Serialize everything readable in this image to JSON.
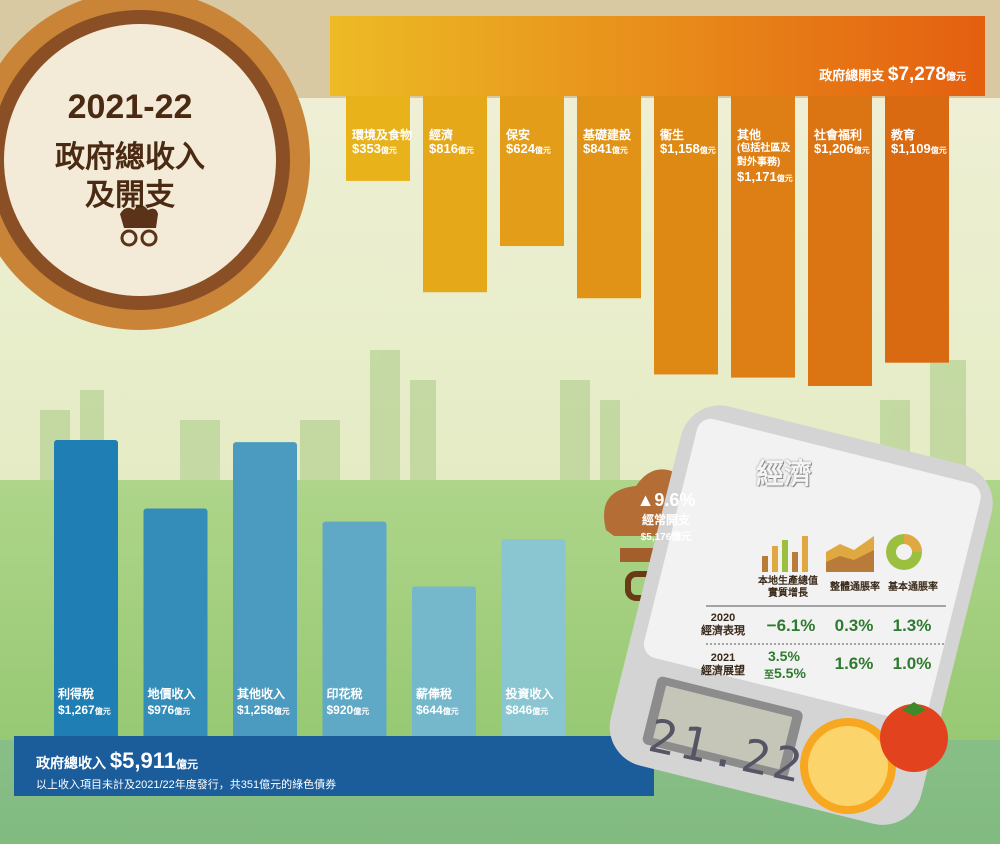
{
  "emblem": {
    "year": "2021-22",
    "title_line1": "政府總收入",
    "title_line2": "及開支"
  },
  "expenditure": {
    "total_label": "政府總開支",
    "total_value": "$7,278",
    "unit": "億元",
    "items": [
      {
        "name": "環境及食物",
        "amount": "$353",
        "note": ""
      },
      {
        "name": "經濟",
        "amount": "$816",
        "note": ""
      },
      {
        "name": "保安",
        "amount": "$624",
        "note": ""
      },
      {
        "name": "基礎建設",
        "amount": "$841",
        "note": ""
      },
      {
        "name": "衞生",
        "amount": "$1,158",
        "note": ""
      },
      {
        "name": "其他",
        "amount": "$1,171",
        "note": "(包括社區及\n對外事務)"
      },
      {
        "name": "社會福利",
        "amount": "$1,206",
        "note": ""
      },
      {
        "name": "教育",
        "amount": "$1,109",
        "note": ""
      }
    ]
  },
  "revenue": {
    "total_label": "政府總收入",
    "total_value": "$5,911",
    "unit": "億元",
    "footnote": "以上收入項目未計及2021/22年度發行，共351億元的綠色債券",
    "items": [
      {
        "name": "利得稅",
        "amount": "$1,267"
      },
      {
        "name": "地價收入",
        "amount": "$976"
      },
      {
        "name": "其他收入",
        "amount": "$1,258"
      },
      {
        "name": "印花稅",
        "amount": "$920"
      },
      {
        "name": "薪俸稅",
        "amount": "$644"
      },
      {
        "name": "投資收入",
        "amount": "$846"
      }
    ]
  },
  "recurrent": {
    "growth": "9.6%",
    "label": "經常開支",
    "amount": "$5,176億元"
  },
  "economy": {
    "title": "經濟",
    "headers": [
      "本地生產總值\n實質增長",
      "整體通脹率",
      "基本通脹率"
    ],
    "rows": [
      {
        "year": "2020",
        "label": "經濟表現",
        "gdp": "−6.1%",
        "headline": "0.3%",
        "underlying": "1.3%"
      },
      {
        "year": "2021",
        "label": "經濟展望",
        "gdp_line1": "3.5%",
        "gdp_line2": "5.5%",
        "gdp_to": "至",
        "headline": "1.6%",
        "underlying": "1.0%"
      }
    ]
  },
  "scale_display": "21.22",
  "chart_data": {
    "type": "bar",
    "charts": [
      {
        "title": "政府總開支 $7,278億元",
        "categories": [
          "環境及食物",
          "經濟",
          "保安",
          "基礎建設",
          "衞生",
          "其他",
          "社會福利",
          "教育"
        ],
        "values": [
          353,
          816,
          624,
          841,
          1158,
          1171,
          1206,
          1109
        ],
        "unit": "億元"
      },
      {
        "title": "政府總收入 $5,911億元",
        "categories": [
          "利得稅",
          "地價收入",
          "其他收入",
          "印花稅",
          "薪俸稅",
          "投資收入"
        ],
        "values": [
          1267,
          976,
          1258,
          920,
          644,
          846
        ],
        "unit": "億元"
      }
    ]
  },
  "colors": {
    "sky": "#e6ecc4",
    "green": "#a3cf7c",
    "expenditure_bar_start": "#e7b21a",
    "expenditure_bar_end": "#d96a12",
    "revenue_bar_start": "#1f7eb3",
    "revenue_bar_end": "#8ac6d2",
    "emblem_ring": "#c98437",
    "emblem_dark": "#7b4320"
  }
}
